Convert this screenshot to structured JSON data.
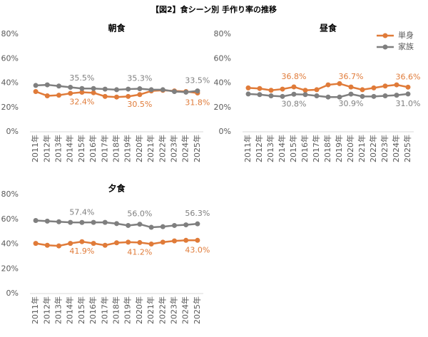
{
  "title": "【図2】食シーン別 手作り率の推移",
  "chart_data": [
    {
      "type": "line",
      "title": "朝食",
      "categories": [
        "2011年",
        "2012年",
        "2013年",
        "2014年",
        "2015年",
        "2016年",
        "2017年",
        "2018年",
        "2019年",
        "2020年",
        "2021年",
        "2022年",
        "2023年",
        "2024年",
        "2025年"
      ],
      "ylim": [
        0,
        80
      ],
      "yticks": [
        {
          "value": 0,
          "label": "0%"
        },
        {
          "value": 20,
          "label": "20%"
        },
        {
          "value": 40,
          "label": "40%"
        },
        {
          "value": 60,
          "label": "60%"
        },
        {
          "value": 80,
          "label": "80%"
        }
      ],
      "series": [
        {
          "color": "#e07b39",
          "values": [
            33,
            29.5,
            30,
            31.5,
            32.4,
            32,
            29,
            28.5,
            29,
            30.5,
            33.5,
            34,
            33.5,
            33,
            31.8
          ],
          "value_labels": [
            null,
            null,
            null,
            null,
            "32.4%",
            null,
            null,
            null,
            null,
            "30.5%",
            null,
            null,
            null,
            null,
            "31.8%"
          ]
        },
        {
          "color": "#7f7f7f",
          "values": [
            38,
            38.5,
            37.5,
            36.5,
            35.5,
            35.5,
            35,
            34.5,
            35,
            35.3,
            34.5,
            34.5,
            33,
            32.5,
            33.5
          ],
          "value_labels": [
            null,
            null,
            null,
            null,
            "35.5%",
            null,
            null,
            null,
            null,
            "35.3%",
            null,
            null,
            null,
            null,
            "33.5%"
          ]
        }
      ]
    },
    {
      "type": "line",
      "title": "昼食",
      "categories": [
        "2011年",
        "2012年",
        "2013年",
        "2014年",
        "2015年",
        "2016年",
        "2017年",
        "2018年",
        "2019年",
        "2020年",
        "2021年",
        "2022年",
        "2023年",
        "2024年",
        "2025年"
      ],
      "ylim": [
        0,
        80
      ],
      "yticks": [
        {
          "value": 0,
          "label": "0%"
        },
        {
          "value": 20,
          "label": "20%"
        },
        {
          "value": 40,
          "label": "40%"
        },
        {
          "value": 60,
          "label": "60%"
        },
        {
          "value": 80,
          "label": "80%"
        }
      ],
      "series": [
        {
          "name": "単身",
          "color": "#e07b39",
          "values": [
            36,
            35.5,
            34,
            35,
            36.8,
            34,
            34.5,
            38.5,
            39.5,
            36.7,
            34.5,
            36,
            37.5,
            38.5,
            36.6
          ],
          "value_labels": [
            null,
            null,
            null,
            null,
            "36.8%",
            null,
            null,
            null,
            null,
            "36.7%",
            null,
            null,
            null,
            null,
            "36.6%"
          ]
        },
        {
          "name": "家族",
          "color": "#7f7f7f",
          "values": [
            31,
            30.5,
            29.5,
            29,
            30.8,
            30.5,
            29.5,
            28.5,
            28.5,
            30.9,
            29,
            29,
            29.5,
            30,
            31
          ],
          "value_labels": [
            null,
            null,
            null,
            null,
            "30.8%",
            null,
            null,
            null,
            null,
            "30.9%",
            null,
            null,
            null,
            null,
            "31.0%"
          ]
        }
      ]
    },
    {
      "type": "line",
      "title": "夕食",
      "categories": [
        "2011年",
        "2012年",
        "2013年",
        "2014年",
        "2015年",
        "2016年",
        "2017年",
        "2018年",
        "2019年",
        "2020年",
        "2021年",
        "2022年",
        "2023年",
        "2024年",
        "2025年"
      ],
      "ylim": [
        0,
        80
      ],
      "yticks": [
        {
          "value": 0,
          "label": "0%"
        },
        {
          "value": 20,
          "label": "20%"
        },
        {
          "value": 40,
          "label": "40%"
        },
        {
          "value": 60,
          "label": "60%"
        },
        {
          "value": 80,
          "label": "80%"
        }
      ],
      "series": [
        {
          "color": "#e07b39",
          "values": [
            40.5,
            39,
            38.5,
            40.5,
            41.9,
            40.5,
            39,
            41,
            41.5,
            41.2,
            40,
            41.5,
            42.5,
            43,
            43
          ],
          "value_labels": [
            null,
            null,
            null,
            null,
            "41.9%",
            null,
            null,
            null,
            null,
            "41.2%",
            null,
            null,
            null,
            null,
            "43.0%"
          ]
        },
        {
          "color": "#7f7f7f",
          "values": [
            59,
            58.5,
            58,
            57.5,
            57.4,
            57.5,
            57.5,
            56.5,
            55,
            56,
            53.5,
            54,
            55,
            55.5,
            56.3
          ],
          "value_labels": [
            null,
            null,
            null,
            null,
            "57.4%",
            null,
            null,
            null,
            null,
            "56.0%",
            null,
            null,
            null,
            null,
            "56.3%"
          ]
        }
      ]
    }
  ]
}
